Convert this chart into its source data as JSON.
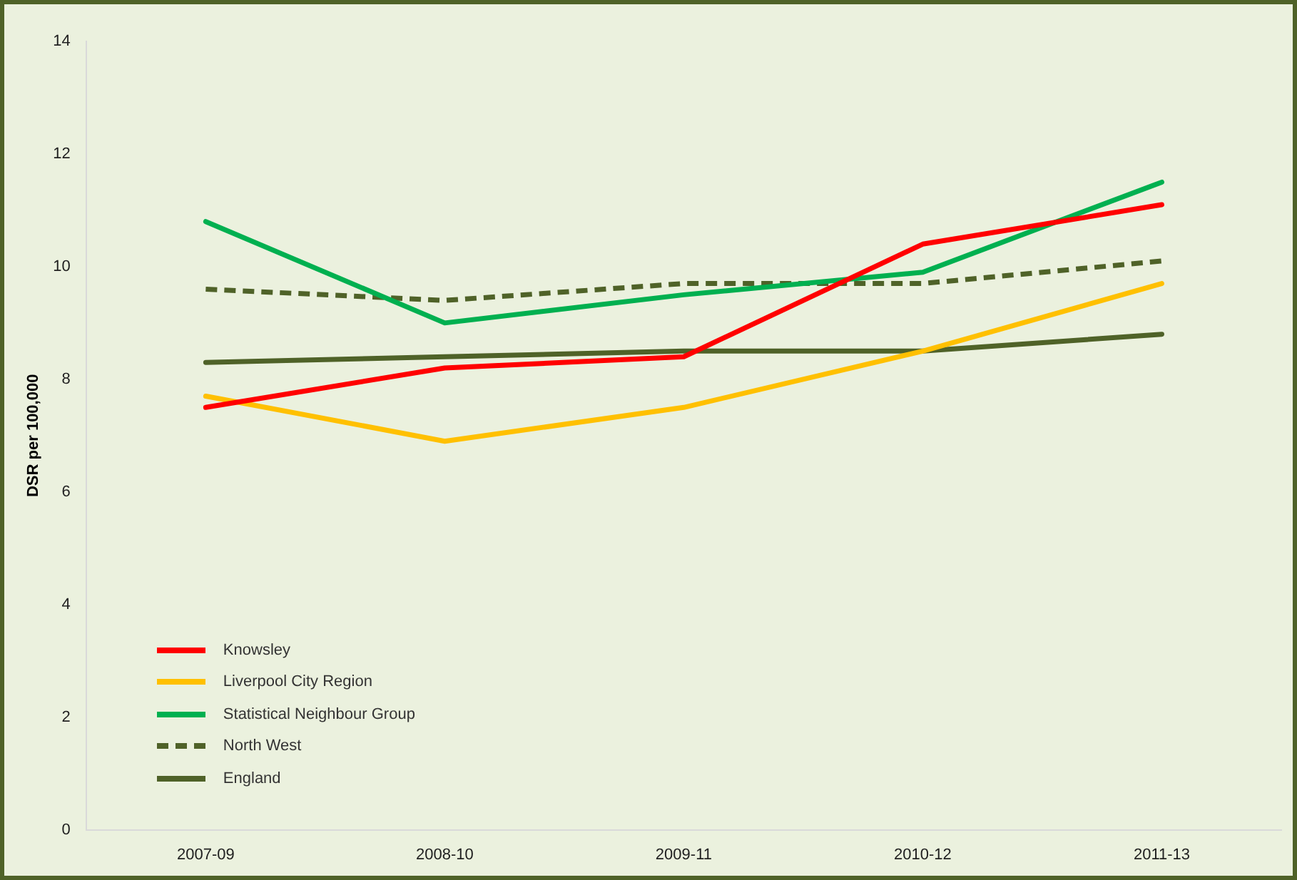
{
  "chart_data": {
    "type": "line",
    "ylabel": "DSR per 100,000",
    "categories": [
      "2007-09",
      "2008-10",
      "2009-11",
      "2010-12",
      "2011-13"
    ],
    "series": [
      {
        "name": "Knowsley",
        "color": "#ff0000",
        "values": [
          7.5,
          8.2,
          8.4,
          10.4,
          11.1
        ]
      },
      {
        "name": "Liverpool City Region",
        "color": "#ffc000",
        "values": [
          7.7,
          6.9,
          7.5,
          8.5,
          9.7
        ]
      },
      {
        "name": "Statistical Neighbour Group",
        "color": "#00b050",
        "values": [
          10.8,
          9.0,
          9.5,
          9.9,
          11.5
        ]
      },
      {
        "name": "North West",
        "color": "#4f6228",
        "values": [
          9.6,
          9.4,
          9.7,
          9.7,
          10.1
        ],
        "line_style": "dashed"
      },
      {
        "name": "England",
        "color": "#4f6228",
        "values": [
          8.3,
          8.4,
          8.5,
          8.5,
          8.8
        ]
      }
    ],
    "ylim": [
      0,
      14
    ],
    "yticks": [
      0,
      2,
      4,
      6,
      8,
      10,
      12,
      14
    ],
    "grid": false,
    "legend": "bottom left",
    "marker": "none",
    "line_style": "solid"
  }
}
